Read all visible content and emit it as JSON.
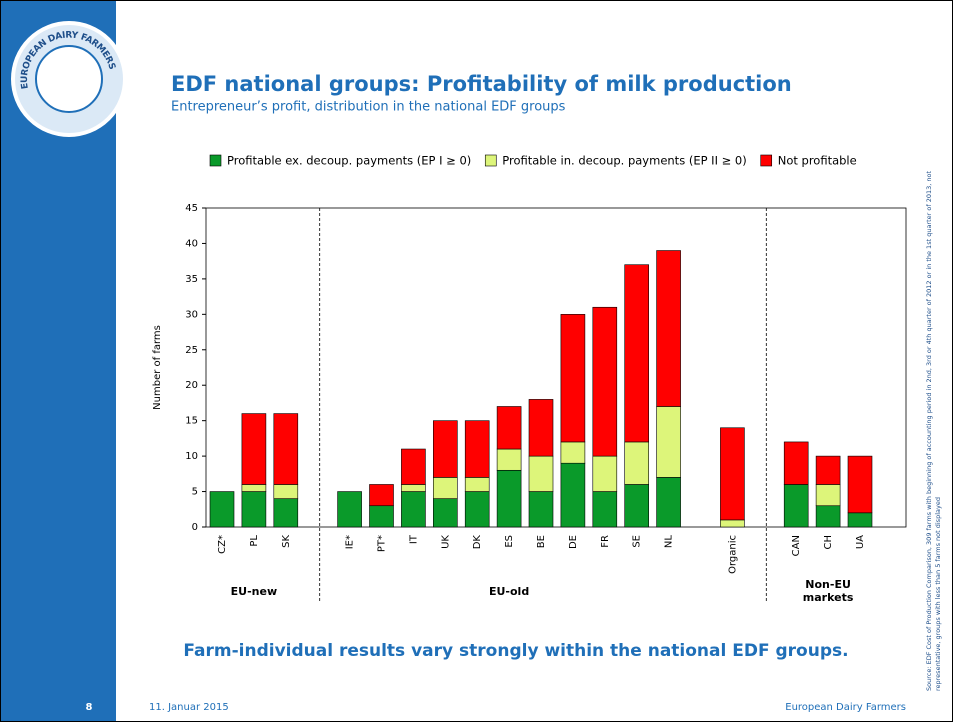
{
  "header": {
    "logo_text": "EUROPEAN DAIRY FARMERS",
    "title": "EDF national groups: Profitability of milk production",
    "subtitle": "Entrepreneur’s profit, distribution in the national EDF groups"
  },
  "chart_data": {
    "type": "bar",
    "stacked": true,
    "ylabel": "Number of farms",
    "categories": [
      "CZ*",
      "PL",
      "SK",
      null,
      "IE*",
      "PT*",
      "IT",
      "UK",
      "DK",
      "ES",
      "BE",
      "DE",
      "FR",
      "SE",
      "NL",
      null,
      "Organic",
      null,
      "CAN",
      "CH",
      "UA"
    ],
    "series": [
      {
        "name": "Profitable ex. decoup. payments (EP I ≥ 0)",
        "color": "#0a9a2a",
        "values": [
          5,
          5,
          4,
          null,
          5,
          3,
          5,
          4,
          5,
          8,
          5,
          9,
          5,
          6,
          7,
          null,
          0,
          null,
          6,
          3,
          2
        ]
      },
      {
        "name": "Profitable in. decoup. payments (EP II ≥ 0)",
        "color": "#ddf57a",
        "values": [
          0,
          1,
          2,
          null,
          0,
          0,
          1,
          3,
          2,
          3,
          5,
          3,
          5,
          6,
          10,
          null,
          1,
          null,
          0,
          3,
          0
        ]
      },
      {
        "name": "Not profitable",
        "color": "#ff0000",
        "values": [
          0,
          10,
          10,
          null,
          0,
          3,
          5,
          8,
          8,
          6,
          8,
          18,
          21,
          25,
          22,
          null,
          13,
          null,
          6,
          4,
          8
        ]
      }
    ],
    "ylim": [
      0,
      45
    ],
    "yticks": [
      0,
      5,
      10,
      15,
      20,
      25,
      30,
      35,
      40,
      45
    ],
    "groups": [
      "EU-new",
      "EU-old",
      "Non-EU markets"
    ]
  },
  "conclusion": "Farm-individual results vary strongly within the national EDF groups.",
  "source": "Source: EDF Cost of Production Comparison, 309 farms with beginning of accounting period in 2nd, 3rd or 4th quarter of 2012 or in the 1st quarter of 2013, not representative, groups with less than 5 farms not displayed",
  "footer": {
    "page": "8",
    "date": "11. Januar 2015",
    "organisation": "European Dairy Farmers"
  }
}
